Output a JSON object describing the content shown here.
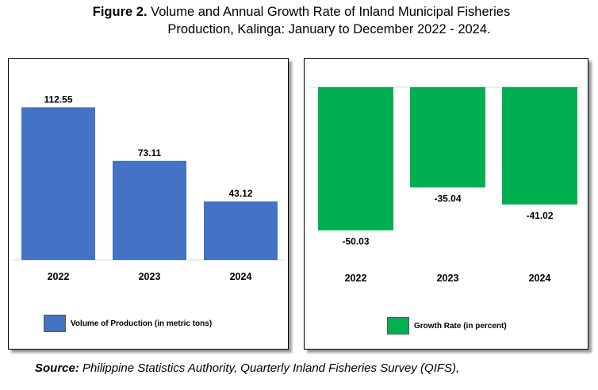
{
  "figure": {
    "label": "Figure 2.",
    "title_line1": "Volume and Annual Growth Rate of Inland Municipal Fisheries",
    "title_line2": "Production, Kalinga: January to December 2022 - 2024."
  },
  "source": {
    "label": "Source:",
    "text": "Philippine Statistics Authority, Quarterly Inland Fisheries Survey (QIFS),"
  },
  "chart_data": [
    {
      "type": "bar",
      "categories": [
        "2022",
        "2023",
        "2024"
      ],
      "series": [
        {
          "name": "Volume of Production (in metric tons)",
          "values": [
            112.55,
            73.11,
            43.12
          ],
          "color": "#4472C4"
        }
      ],
      "data_labels": [
        "112.55",
        "73.11",
        "43.12"
      ],
      "ylim": [
        0,
        130
      ],
      "grid": false,
      "legend": "bottom"
    },
    {
      "type": "bar",
      "categories": [
        "2022",
        "2023",
        "2024"
      ],
      "series": [
        {
          "name": "Growth Rate (in percent)",
          "values": [
            -50.03,
            -35.04,
            -41.02
          ],
          "color": "#00B050"
        }
      ],
      "data_labels": [
        "-50.03",
        "-35.04",
        "-41.02"
      ],
      "ylim": [
        -60,
        0
      ],
      "grid": false,
      "legend": "bottom"
    }
  ]
}
